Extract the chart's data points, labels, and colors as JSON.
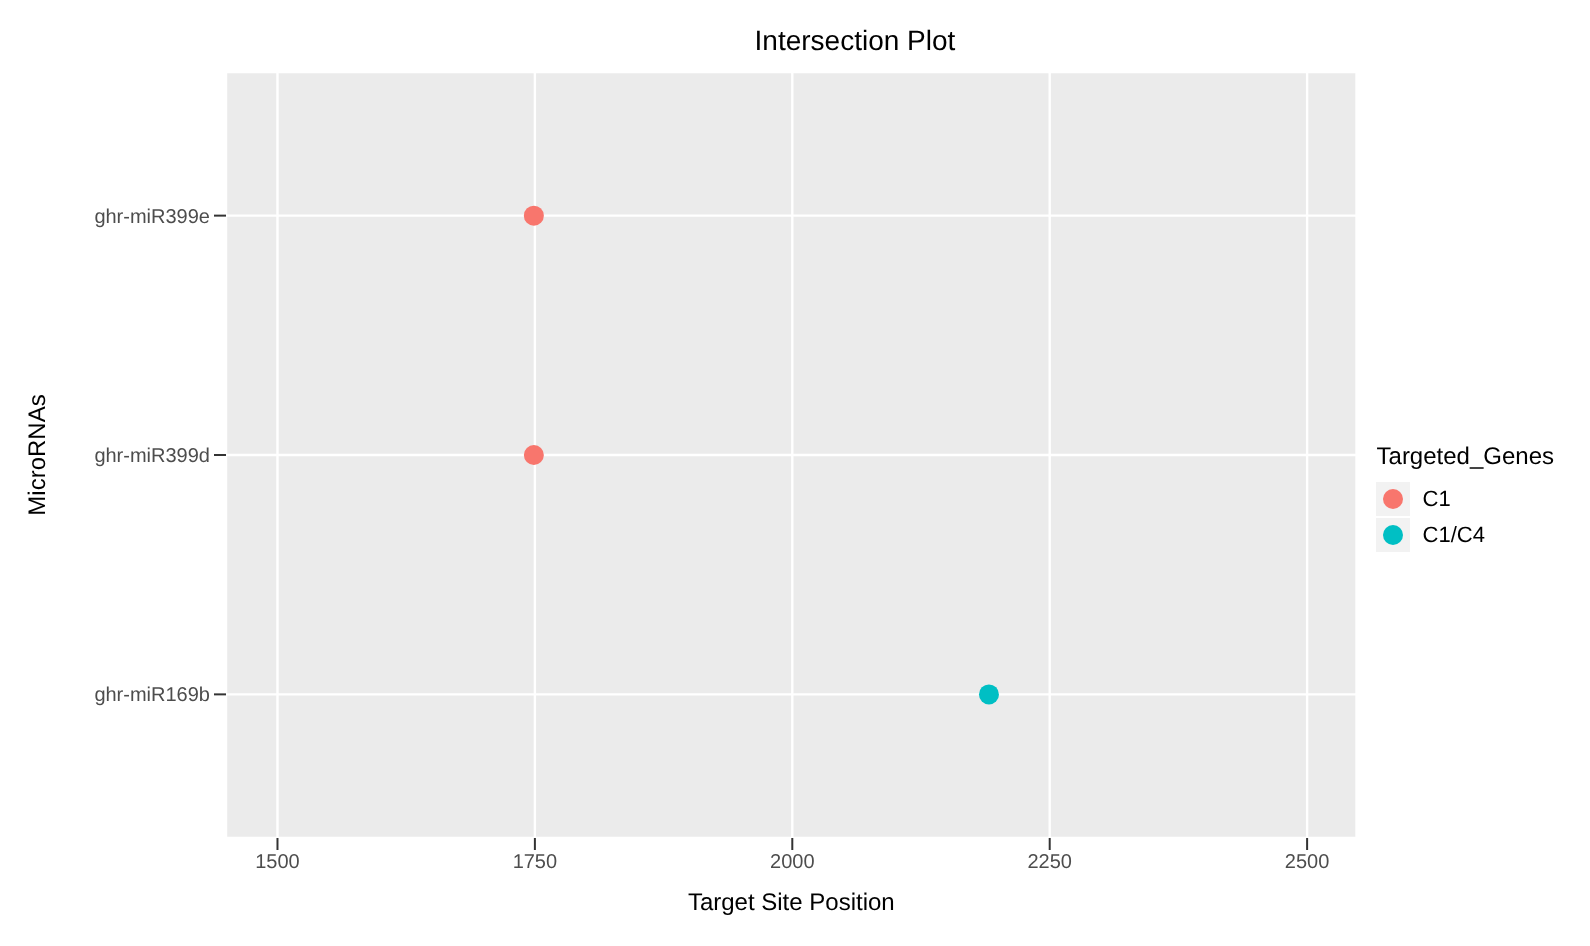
{
  "chart_data": {
    "type": "scatter",
    "orientation": "horizontal",
    "title": "Intersection Plot",
    "xlabel": "Target Site Position",
    "ylabel": "MicroRNAs",
    "legend_title": "Targeted_Genes",
    "categories": [
      "ghr-miR399e",
      "ghr-miR399d",
      "ghr-miR169b"
    ],
    "series": [
      {
        "name": "C1",
        "color": "#f8766d",
        "values": [
          1749,
          1749,
          null
        ]
      },
      {
        "name": "C1/C4",
        "color": "#00bfc4",
        "values": [
          null,
          null,
          2191
        ]
      }
    ],
    "xlim": [
      1450,
      2548
    ],
    "xticks": [
      1500,
      1750,
      2000,
      2250,
      2500
    ],
    "grid": true,
    "legend": "right",
    "marker": "circle"
  }
}
